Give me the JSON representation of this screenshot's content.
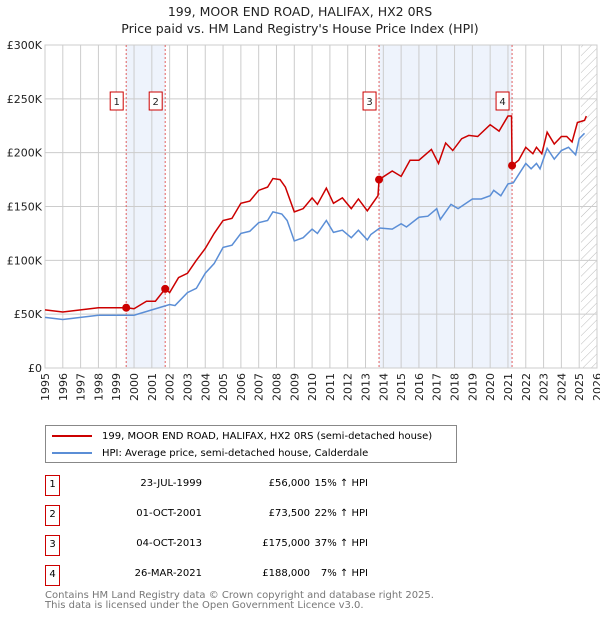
{
  "chart_data": {
    "type": "line",
    "title": "199, MOOR END ROAD, HALIFAX, HX2 0RS",
    "subtitle": "Price paid vs. HM Land Registry's House Price Index (HPI)",
    "xlim": [
      1995,
      2026
    ],
    "ylim": [
      0,
      300000
    ],
    "y_ticks": [
      0,
      50000,
      100000,
      150000,
      200000,
      250000,
      300000
    ],
    "y_tick_labels": [
      "£0",
      "£50K",
      "£100K",
      "£150K",
      "£200K",
      "£250K",
      "£300K"
    ],
    "x_ticks": [
      "1995",
      "1996",
      "1997",
      "1998",
      "1999",
      "2000",
      "2001",
      "2002",
      "2003",
      "2004",
      "2005",
      "2006",
      "2007",
      "2008",
      "2009",
      "2010",
      "2011",
      "2012",
      "2013",
      "2014",
      "2015",
      "2016",
      "2017",
      "2018",
      "2019",
      "2020",
      "2021",
      "2022",
      "2023",
      "2024",
      "2025",
      "2026"
    ],
    "grid": true,
    "shaded_ranges": [
      [
        1999.56,
        2001.75
      ],
      [
        2013.76,
        2021.23
      ]
    ],
    "forecast_hatch_from": 2025.1,
    "series": [
      {
        "name": "199, MOOR END ROAD, HALIFAX, HX2 0RS (semi-detached house)",
        "color": "#cc0000",
        "x": [
          1995,
          1996,
          1997,
          1998,
          1999.56,
          2000,
          2000.7,
          2001.2,
          2001.75,
          2002,
          2002.5,
          2003,
          2003.5,
          2004,
          2004.5,
          2005,
          2005.5,
          2006,
          2006.5,
          2007,
          2007.5,
          2007.8,
          2008.2,
          2008.5,
          2009,
          2009.5,
          2010,
          2010.3,
          2010.8,
          2011.2,
          2011.7,
          2012.2,
          2012.6,
          2013.1,
          2013.7,
          2013.76,
          2014.5,
          2015,
          2015.5,
          2016,
          2016.7,
          2017.1,
          2017.5,
          2017.9,
          2018.4,
          2018.8,
          2019.3,
          2020,
          2020.5,
          2021,
          2021.2,
          2021.23,
          2021.6,
          2022,
          2022.4,
          2022.6,
          2022.9,
          2023.2,
          2023.6,
          2024,
          2024.3,
          2024.6,
          2024.9,
          2025.3,
          2025.4
        ],
        "y": [
          54000,
          52000,
          54000,
          56000,
          56000,
          55000,
          62000,
          62000,
          73500,
          70000,
          84000,
          88000,
          100000,
          111000,
          125000,
          137000,
          139000,
          153000,
          155000,
          165000,
          168000,
          176000,
          175000,
          168000,
          145000,
          148000,
          158000,
          152000,
          167000,
          153000,
          158000,
          148000,
          157000,
          146000,
          160000,
          175000,
          183000,
          178000,
          193000,
          193000,
          203000,
          190000,
          209000,
          202000,
          213000,
          216000,
          215000,
          226000,
          220000,
          234000,
          234000,
          188000,
          193000,
          205000,
          199000,
          205000,
          199000,
          219000,
          208000,
          215000,
          215000,
          210000,
          228000,
          230000,
          234000
        ]
      },
      {
        "name": "HPI: Average price, semi-detached house, Calderdale",
        "color": "#5b8ed6",
        "x": [
          1995,
          1996,
          1997,
          1998,
          1999,
          2000,
          2001,
          2002,
          2002.3,
          2003,
          2003.5,
          2004,
          2004.5,
          2005,
          2005.5,
          2006,
          2006.5,
          2007,
          2007.5,
          2007.8,
          2008.3,
          2008.6,
          2009,
          2009.5,
          2010,
          2010.3,
          2010.8,
          2011.2,
          2011.7,
          2012.2,
          2012.6,
          2013.1,
          2013.3,
          2013.8,
          2014.5,
          2015,
          2015.3,
          2016,
          2016.5,
          2017,
          2017.2,
          2017.8,
          2018.2,
          2019,
          2019.5,
          2020,
          2020.2,
          2020.6,
          2021,
          2021.3,
          2022,
          2022.3,
          2022.6,
          2022.8,
          2023.2,
          2023.6,
          2024,
          2024.4,
          2024.8,
          2025,
          2025.3
        ],
        "y": [
          47000,
          45000,
          47000,
          49000,
          49000,
          49000,
          54000,
          59000,
          58000,
          70000,
          74000,
          88000,
          97000,
          112000,
          114000,
          125000,
          127000,
          135000,
          137000,
          145000,
          143000,
          137000,
          118000,
          121000,
          129000,
          125000,
          137000,
          126000,
          128000,
          121000,
          128000,
          119000,
          124000,
          130000,
          129000,
          134000,
          131000,
          140000,
          141000,
          148000,
          138000,
          152000,
          148000,
          157000,
          157000,
          160000,
          165000,
          160000,
          171000,
          172000,
          190000,
          185000,
          190000,
          185000,
          204000,
          194000,
          202000,
          205000,
          198000,
          213000,
          218000
        ]
      }
    ],
    "annotations": [
      {
        "label": "1",
        "x": 1999.56,
        "y": 56000
      },
      {
        "label": "2",
        "x": 2001.75,
        "y": 73500
      },
      {
        "label": "3",
        "x": 2013.76,
        "y": 175000
      },
      {
        "label": "4",
        "x": 2021.23,
        "y": 188000
      }
    ]
  },
  "legend": {
    "items": [
      "199, MOOR END ROAD, HALIFAX, HX2 0RS (semi-detached house)",
      "HPI: Average price, semi-detached house, Calderdale"
    ]
  },
  "transactions": [
    {
      "num": "1",
      "date": "23-JUL-1999",
      "price": "£56,000",
      "hpi": "15% ↑ HPI"
    },
    {
      "num": "2",
      "date": "01-OCT-2001",
      "price": "£73,500",
      "hpi": "22% ↑ HPI"
    },
    {
      "num": "3",
      "date": "04-OCT-2013",
      "price": "£175,000",
      "hpi": "37% ↑ HPI"
    },
    {
      "num": "4",
      "date": "26-MAR-2021",
      "price": "£188,000",
      "hpi": "7% ↑ HPI"
    }
  ],
  "footer": {
    "line1": "Contains HM Land Registry data © Crown copyright and database right 2025.",
    "line2": "This data is licensed under the Open Government Licence v3.0."
  }
}
